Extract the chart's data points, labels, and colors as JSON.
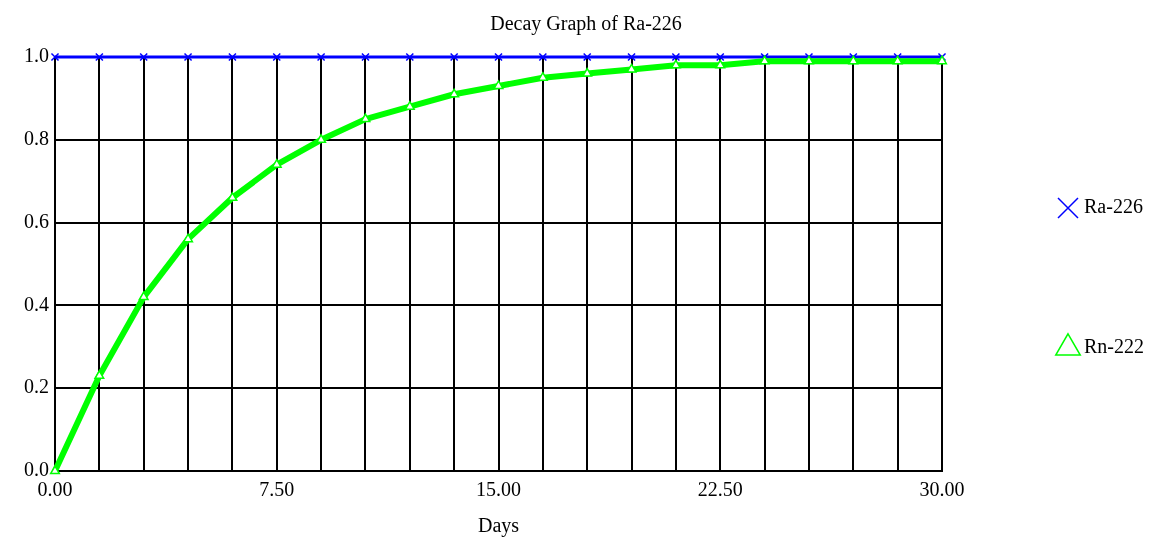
{
  "chart_data": {
    "type": "line",
    "title": "Decay Graph of Ra-226",
    "xlabel": "Days",
    "x": [
      0,
      1.5,
      3,
      4.5,
      6,
      7.5,
      9,
      10.5,
      12,
      13.5,
      15,
      16.5,
      18,
      19.5,
      21,
      22.5,
      24,
      25.5,
      27,
      28.5,
      30
    ],
    "series": [
      {
        "name": "Ra-226",
        "color": "#0000ff",
        "marker": "cross",
        "values": [
          1,
          1,
          1,
          1,
          1,
          1,
          1,
          1,
          1,
          1,
          1,
          1,
          1,
          1,
          1,
          1,
          1,
          1,
          1,
          1,
          1
        ]
      },
      {
        "name": "Rn-222",
        "color": "#00ff00",
        "marker": "triangle",
        "values": [
          0,
          0.23,
          0.42,
          0.56,
          0.66,
          0.74,
          0.8,
          0.85,
          0.88,
          0.91,
          0.93,
          0.95,
          0.96,
          0.97,
          0.98,
          0.98,
          0.99,
          0.99,
          0.99,
          0.99,
          0.99
        ]
      }
    ],
    "xlim": [
      0,
      30
    ],
    "xticks": [
      {
        "value": 0,
        "label": "0.00"
      },
      {
        "value": 1.5,
        "label": null
      },
      {
        "value": 3,
        "label": null
      },
      {
        "value": 4.5,
        "label": null
      },
      {
        "value": 6,
        "label": null
      },
      {
        "value": 7.5,
        "label": "7.50"
      },
      {
        "value": 9,
        "label": null
      },
      {
        "value": 10.5,
        "label": null
      },
      {
        "value": 12,
        "label": null
      },
      {
        "value": 13.5,
        "label": null
      },
      {
        "value": 15,
        "label": "15.00"
      },
      {
        "value": 16.5,
        "label": null
      },
      {
        "value": 18,
        "label": null
      },
      {
        "value": 19.5,
        "label": null
      },
      {
        "value": 21,
        "label": null
      },
      {
        "value": 22.5,
        "label": "22.50"
      },
      {
        "value": 24,
        "label": null
      },
      {
        "value": 25.5,
        "label": null
      },
      {
        "value": 27,
        "label": null
      },
      {
        "value": 28.5,
        "label": null
      },
      {
        "value": 30,
        "label": "30.00"
      }
    ],
    "ylim": [
      0,
      1
    ],
    "yticks": [
      {
        "value": 0,
        "label": "0.0"
      },
      {
        "value": 0.2,
        "label": "0.2"
      },
      {
        "value": 0.4,
        "label": "0.4"
      },
      {
        "value": 0.6,
        "label": "0.6"
      },
      {
        "value": 0.8,
        "label": "0.8"
      },
      {
        "value": 1,
        "label": "1.0"
      }
    ],
    "grid": true,
    "legend": "right",
    "line_style": "solid"
  }
}
